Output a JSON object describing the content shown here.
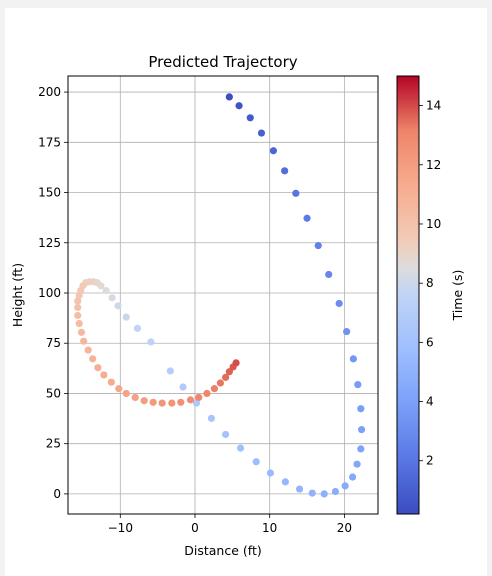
{
  "chart_data": {
    "type": "scatter",
    "title": "Predicted Trajectory",
    "xlabel": "Distance (ft)",
    "ylabel": "Height (ft)",
    "xlim": [
      -17,
      24.5
    ],
    "ylim": [
      -10,
      208
    ],
    "xticks": [
      -10,
      0,
      10,
      20
    ],
    "yticks": [
      0,
      25,
      50,
      75,
      100,
      125,
      150,
      175,
      200
    ],
    "grid": true,
    "colorbar": {
      "label": "Time (s)",
      "colormap": "coolwarm",
      "range": [
        0.2,
        15
      ],
      "ticks": [
        2,
        4,
        6,
        8,
        10,
        12,
        14
      ]
    },
    "series": [
      {
        "points": [
          {
            "x": 4.6,
            "y": 197.6,
            "t": 0.3
          },
          {
            "x": 5.9,
            "y": 193.2,
            "t": 0.55
          },
          {
            "x": 7.4,
            "y": 187.2,
            "t": 0.8
          },
          {
            "x": 8.9,
            "y": 179.6,
            "t": 1.05
          },
          {
            "x": 10.5,
            "y": 170.8,
            "t": 1.35
          },
          {
            "x": 12.0,
            "y": 160.8,
            "t": 1.65
          },
          {
            "x": 13.5,
            "y": 149.6,
            "t": 1.95
          },
          {
            "x": 15.0,
            "y": 137.2,
            "t": 2.25
          },
          {
            "x": 16.5,
            "y": 123.6,
            "t": 2.5
          },
          {
            "x": 17.9,
            "y": 109.2,
            "t": 2.8
          },
          {
            "x": 19.3,
            "y": 94.8,
            "t": 3.05
          },
          {
            "x": 20.3,
            "y": 80.8,
            "t": 3.3
          },
          {
            "x": 21.2,
            "y": 67.2,
            "t": 3.5
          },
          {
            "x": 21.8,
            "y": 54.4,
            "t": 3.7
          },
          {
            "x": 22.2,
            "y": 42.4,
            "t": 3.85
          },
          {
            "x": 22.3,
            "y": 32.0,
            "t": 4.0
          },
          {
            "x": 22.2,
            "y": 22.4,
            "t": 4.15
          },
          {
            "x": 21.7,
            "y": 14.8,
            "t": 4.3
          },
          {
            "x": 21.1,
            "y": 8.4,
            "t": 4.45
          },
          {
            "x": 20.1,
            "y": 4.0,
            "t": 4.6
          },
          {
            "x": 18.8,
            "y": 1.2,
            "t": 4.75
          },
          {
            "x": 17.3,
            "y": 0.0,
            "t": 4.9
          },
          {
            "x": 15.7,
            "y": 0.4,
            "t": 5.05
          },
          {
            "x": 14.0,
            "y": 2.4,
            "t": 5.2
          },
          {
            "x": 12.1,
            "y": 6.0,
            "t": 5.35
          },
          {
            "x": 10.1,
            "y": 10.4,
            "t": 5.5
          },
          {
            "x": 8.2,
            "y": 16.0,
            "t": 5.7
          },
          {
            "x": 6.1,
            "y": 22.8,
            "t": 5.9
          },
          {
            "x": 4.1,
            "y": 29.6,
            "t": 6.1
          },
          {
            "x": 2.2,
            "y": 37.6,
            "t": 6.3
          },
          {
            "x": 0.2,
            "y": 45.2,
            "t": 6.55
          },
          {
            "x": -1.6,
            "y": 53.2,
            "t": 6.8
          },
          {
            "x": -3.3,
            "y": 61.2,
            "t": 7.05
          },
          {
            "x": -5.9,
            "y": 75.6,
            "t": 7.4
          },
          {
            "x": -7.7,
            "y": 82.4,
            "t": 7.65
          },
          {
            "x": -9.2,
            "y": 88.0,
            "t": 7.9
          },
          {
            "x": -10.3,
            "y": 93.6,
            "t": 8.1
          },
          {
            "x": -11.1,
            "y": 97.6,
            "t": 8.3
          },
          {
            "x": -11.9,
            "y": 101.2,
            "t": 8.5
          },
          {
            "x": -12.6,
            "y": 103.6,
            "t": 8.7
          },
          {
            "x": -13.1,
            "y": 105.2,
            "t": 8.85
          },
          {
            "x": -13.6,
            "y": 105.6,
            "t": 9.0
          },
          {
            "x": -14.1,
            "y": 105.6,
            "t": 9.15
          },
          {
            "x": -14.6,
            "y": 105.2,
            "t": 9.3
          },
          {
            "x": -15.0,
            "y": 103.6,
            "t": 9.45
          },
          {
            "x": -15.3,
            "y": 101.2,
            "t": 9.6
          },
          {
            "x": -15.5,
            "y": 98.8,
            "t": 9.75
          },
          {
            "x": -15.7,
            "y": 96.0,
            "t": 9.9
          },
          {
            "x": -15.7,
            "y": 92.8,
            "t": 10.05
          },
          {
            "x": -15.7,
            "y": 88.8,
            "t": 10.2
          },
          {
            "x": -15.5,
            "y": 84.8,
            "t": 10.35
          },
          {
            "x": -15.2,
            "y": 80.4,
            "t": 10.5
          },
          {
            "x": -14.9,
            "y": 76.0,
            "t": 10.65
          },
          {
            "x": -14.3,
            "y": 71.6,
            "t": 10.8
          },
          {
            "x": -13.7,
            "y": 67.2,
            "t": 10.95
          },
          {
            "x": -13.0,
            "y": 62.8,
            "t": 11.1
          },
          {
            "x": -12.2,
            "y": 59.2,
            "t": 11.25
          },
          {
            "x": -11.2,
            "y": 55.6,
            "t": 11.4
          },
          {
            "x": -10.2,
            "y": 52.4,
            "t": 11.55
          },
          {
            "x": -9.2,
            "y": 50.0,
            "t": 11.7
          },
          {
            "x": -8.0,
            "y": 48.0,
            "t": 11.85
          },
          {
            "x": -6.8,
            "y": 46.4,
            "t": 12.0
          },
          {
            "x": -5.6,
            "y": 45.6,
            "t": 12.15
          },
          {
            "x": -4.4,
            "y": 45.2,
            "t": 12.3
          },
          {
            "x": -3.1,
            "y": 45.2,
            "t": 12.45
          },
          {
            "x": -1.9,
            "y": 45.6,
            "t": 12.6
          },
          {
            "x": -0.6,
            "y": 46.8,
            "t": 12.75
          },
          {
            "x": 0.5,
            "y": 48.0,
            "t": 12.9
          },
          {
            "x": 1.6,
            "y": 50.0,
            "t": 13.05
          },
          {
            "x": 2.6,
            "y": 52.4,
            "t": 13.2
          },
          {
            "x": 3.4,
            "y": 55.2,
            "t": 13.35
          },
          {
            "x": 4.1,
            "y": 58.0,
            "t": 13.5
          },
          {
            "x": 4.6,
            "y": 60.8,
            "t": 13.65
          },
          {
            "x": 5.1,
            "y": 63.2,
            "t": 13.8
          },
          {
            "x": 5.5,
            "y": 65.2,
            "t": 13.95
          }
        ]
      }
    ]
  }
}
